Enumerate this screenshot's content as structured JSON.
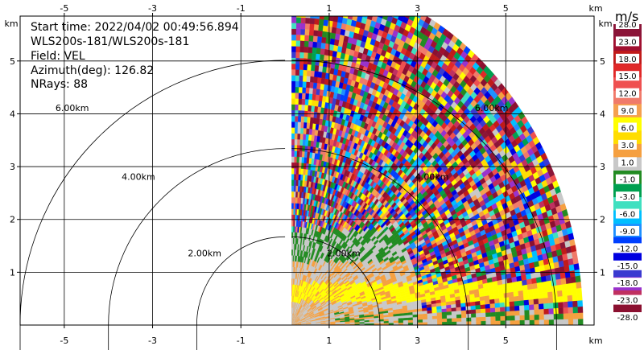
{
  "chart_data": {
    "type": "heatmap",
    "subtype": "radar-ppi-sector",
    "info_lines": [
      "Start time: 2022/04/02 00:49:56.894",
      "WLS200s-181/WLS200s-181",
      "Field: VEL",
      "Azimuth(deg): 126.82",
      "NRays: 88"
    ],
    "x_unit_label": "km",
    "y_unit_label": "km",
    "x_ticks": [
      -5,
      -3,
      -1,
      1,
      3,
      5
    ],
    "y_ticks": [
      1,
      2,
      3,
      4,
      5
    ],
    "xlim": [
      -6.0,
      7.0
    ],
    "ylim": [
      0,
      5.85
    ],
    "range_rings": [
      {
        "r": 2,
        "label": "2.00km",
        "label_west_at": [
          -2.2,
          1.3
        ],
        "label_east_at": [
          0.95,
          1.3
        ]
      },
      {
        "r": 4,
        "label": "4.00km",
        "label_west_at": [
          -3.7,
          2.75
        ],
        "label_east_at": [
          2.95,
          2.75
        ]
      },
      {
        "r": 6,
        "label": "6.00km",
        "label_west_at": [
          -5.2,
          4.05
        ],
        "label_east_at": [
          4.3,
          4.05
        ]
      }
    ],
    "sector": {
      "azimuth_start_deg": 0,
      "azimuth_end_deg": 90,
      "max_range_km": 6.6,
      "ray_start_x_km": 0.15
    },
    "colorbar": {
      "unit": "m/s",
      "tick_labels": [
        "28.0",
        "23.0",
        "18.0",
        "15.0",
        "12.0",
        "9.0",
        "6.0",
        "3.0",
        "1.0",
        "-1.0",
        "-3.0",
        "-6.0",
        "-9.0",
        "-12.0",
        "-15.0",
        "-18.0",
        "-23.0",
        "-28.0"
      ],
      "colors": [
        "#8b1538",
        "#a01030",
        "#c01a1a",
        "#e02828",
        "#ef5050",
        "#f07a6a",
        "#f5a050",
        "#ffff00",
        "#ffdd00",
        "#f5a040",
        "#c8c8c8",
        "#228b22",
        "#00a050",
        "#40e0c0",
        "#00bfff",
        "#1e90ff",
        "#0040ff",
        "#0000e0",
        "#3a3ad0",
        "#9932cc",
        "#c03060",
        "#8b1030"
      ]
    }
  }
}
